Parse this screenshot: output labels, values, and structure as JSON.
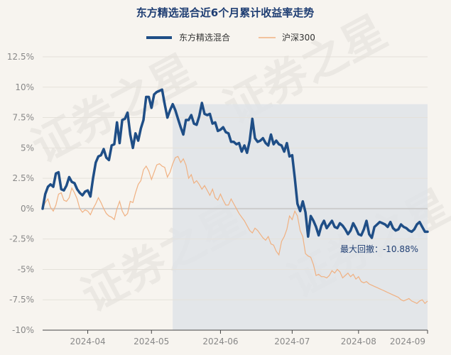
{
  "chart_data": {
    "type": "line",
    "title": "东方精选混合近6个月累计收益率走势",
    "watermark": "证券之星",
    "legend": {
      "placement": "top-center",
      "entries": [
        {
          "name": "东方精选混合",
          "color": "#1f4e86"
        },
        {
          "name": "沪深300",
          "color": "#f0b182"
        }
      ]
    },
    "y_ticks": [
      "12.5%",
      "10%",
      "7.5%",
      "5%",
      "2.5%",
      "0%",
      "-2.5%",
      "-5%",
      "-7.5%",
      "-10%"
    ],
    "ylim": [
      -10,
      12.5
    ],
    "x_ticks": [
      "2024-04",
      "2024-05",
      "2024-06",
      "2024-07",
      "2024-08",
      "2024-09"
    ],
    "x_tick_positions": [
      17,
      41,
      67,
      94,
      119,
      145
    ],
    "xlim": [
      0,
      145
    ],
    "shaded_range": [
      49,
      145
    ],
    "annotation": {
      "label": "最大回撤：-10.88%"
    },
    "series": [
      {
        "name": "东方精选混合",
        "color": "#1f4e86",
        "x": [
          0,
          1,
          2,
          3,
          4,
          5,
          6,
          7,
          8,
          9,
          10,
          11,
          12,
          13,
          14,
          15,
          16,
          17,
          18,
          19,
          20,
          21,
          22,
          23,
          24,
          25,
          26,
          27,
          28,
          29,
          30,
          31,
          32,
          33,
          34,
          35,
          36,
          37,
          38,
          39,
          40,
          41,
          42,
          43,
          44,
          45,
          46,
          47,
          48,
          49,
          50,
          51,
          52,
          53,
          54,
          55,
          56,
          57,
          58,
          59,
          60,
          61,
          62,
          63,
          64,
          65,
          66,
          67,
          68,
          69,
          70,
          71,
          72,
          73,
          74,
          75,
          76,
          77,
          78,
          79,
          80,
          81,
          82,
          83,
          84,
          85,
          86,
          87,
          88,
          89,
          90,
          91,
          92,
          93,
          94,
          95,
          96,
          97,
          98,
          99,
          100,
          101,
          102,
          103,
          104,
          105,
          106,
          107,
          108,
          109,
          110,
          111,
          112,
          113,
          114,
          115,
          116,
          117,
          118,
          119,
          120,
          121,
          122,
          123,
          124,
          125,
          126,
          127,
          128,
          129,
          130,
          131,
          132,
          133,
          134,
          135,
          136,
          137,
          138,
          139,
          140,
          141,
          142,
          143,
          144,
          145
        ],
        "values": [
          0,
          1.2,
          1.8,
          2.0,
          1.8,
          2.9,
          3.0,
          1.6,
          1.5,
          1.9,
          2.6,
          2.2,
          2.1,
          1.6,
          1.3,
          1.1,
          1.4,
          1.5,
          1.0,
          2.5,
          3.8,
          4.3,
          4.4,
          4.9,
          4.2,
          4.0,
          5.2,
          5.3,
          7.1,
          5.4,
          7.3,
          7.4,
          7.9,
          6.1,
          5.0,
          6.2,
          5.6,
          6.6,
          7.3,
          9.2,
          9.2,
          8.3,
          9.4,
          9.6,
          9.7,
          9.8,
          8.6,
          7.5,
          8.1,
          8.6,
          8.1,
          7.4,
          6.7,
          6.1,
          7.3,
          7.3,
          7.7,
          7.0,
          6.9,
          7.6,
          8.7,
          7.8,
          7.7,
          7.8,
          7.0,
          7.1,
          6.4,
          6.5,
          6.7,
          6.3,
          6.2,
          5.5,
          5.5,
          5.3,
          5.4,
          4.7,
          5.2,
          4.6,
          5.6,
          7.4,
          5.8,
          5.5,
          5.6,
          5.8,
          5.4,
          5.2,
          6.1,
          5.3,
          5.6,
          5.3,
          5.2,
          4.7,
          5.4,
          4.3,
          4.4,
          2.5,
          0.4,
          -0.2,
          0.6,
          -0.3,
          -2.3,
          -0.6,
          -1.0,
          -1.5,
          -2.2,
          -1.4,
          -1.0,
          -1.6,
          -1.3,
          -1.0,
          -1.5,
          -1.6,
          -1.2,
          -1.4,
          -1.7,
          -2.1,
          -1.8,
          -1.2,
          -1.6,
          -2.1,
          -2.2,
          -1.7,
          -1.0,
          -2.1,
          -2.4,
          -1.5,
          -1.3,
          -1.1,
          -1.2,
          -1.3,
          -1.5,
          -1.1,
          -1.6,
          -1.8,
          -1.7,
          -1.3,
          -1.5,
          -1.6,
          -1.8,
          -1.9,
          -1.7,
          -1.3,
          -1.1,
          -1.5,
          -1.9,
          -1.9
        ]
      },
      {
        "name": "沪深300",
        "color": "#f0b182",
        "x": [
          0,
          1,
          2,
          3,
          4,
          5,
          6,
          7,
          8,
          9,
          10,
          11,
          12,
          13,
          14,
          15,
          16,
          17,
          18,
          19,
          20,
          21,
          22,
          23,
          24,
          25,
          26,
          27,
          28,
          29,
          30,
          31,
          32,
          33,
          34,
          35,
          36,
          37,
          38,
          39,
          40,
          41,
          42,
          43,
          44,
          45,
          46,
          47,
          48,
          49,
          50,
          51,
          52,
          53,
          54,
          55,
          56,
          57,
          58,
          59,
          60,
          61,
          62,
          63,
          64,
          65,
          66,
          67,
          68,
          69,
          70,
          71,
          72,
          73,
          74,
          75,
          76,
          77,
          78,
          79,
          80,
          81,
          82,
          83,
          84,
          85,
          86,
          87,
          88,
          89,
          90,
          91,
          92,
          93,
          94,
          95,
          96,
          97,
          98,
          99,
          100,
          101,
          102,
          103,
          104,
          105,
          106,
          107,
          108,
          109,
          110,
          111,
          112,
          113,
          114,
          115,
          116,
          117,
          118,
          119,
          120,
          121,
          122,
          123,
          124,
          125,
          126,
          127,
          128,
          129,
          130,
          131,
          132,
          133,
          134,
          135,
          136,
          137,
          138,
          139,
          140,
          141,
          142,
          143,
          144,
          145
        ],
        "values": [
          0,
          0.5,
          0.8,
          0.1,
          -0.2,
          0.3,
          1.2,
          1.3,
          0.7,
          0.6,
          0.9,
          1.7,
          1.3,
          0.8,
          0.0,
          -0.3,
          -0.1,
          -0.2,
          -0.5,
          0.0,
          0.4,
          0.9,
          0.5,
          0.0,
          -0.4,
          -0.6,
          -0.7,
          -0.9,
          0.0,
          0.6,
          -0.2,
          -0.6,
          -0.4,
          0.6,
          0.5,
          1.3,
          2.0,
          2.3,
          3.2,
          3.5,
          3.1,
          2.4,
          3.0,
          3.6,
          3.7,
          3.5,
          3.4,
          2.6,
          3.0,
          3.7,
          4.2,
          4.3,
          3.8,
          4.1,
          3.6,
          2.5,
          2.8,
          2.1,
          2.3,
          2.0,
          1.6,
          1.9,
          1.5,
          1.1,
          1.6,
          0.9,
          0.7,
          1.2,
          0.7,
          0.3,
          0.3,
          0.8,
          0.4,
          0.0,
          -0.4,
          -0.7,
          -1.0,
          -1.4,
          -1.8,
          -2.0,
          -1.6,
          -1.8,
          -2.1,
          -2.4,
          -2.6,
          -2.3,
          -2.9,
          -3.0,
          -3.5,
          -3.8,
          -2.7,
          -2.3,
          -1.7,
          -0.6,
          -0.9,
          -0.2,
          -0.6,
          -1.8,
          -2.3,
          -3.7,
          -3.9,
          -4.0,
          -4.6,
          -5.5,
          -5.4,
          -5.6,
          -5.6,
          -5.7,
          -5.5,
          -5.1,
          -5.3,
          -5.0,
          -5.2,
          -5.7,
          -5.5,
          -5.3,
          -5.6,
          -5.4,
          -5.8,
          -5.6,
          -6.0,
          -6.1,
          -6.0,
          -6.2,
          -6.3,
          -6.4,
          -6.5,
          -6.6,
          -6.7,
          -6.8,
          -6.9,
          -7.0,
          -7.1,
          -7.2,
          -7.3,
          -7.5,
          -7.6,
          -7.5,
          -7.4,
          -7.6,
          -7.7,
          -7.8,
          -7.6,
          -7.5,
          -7.8,
          -7.6
        ]
      }
    ]
  }
}
